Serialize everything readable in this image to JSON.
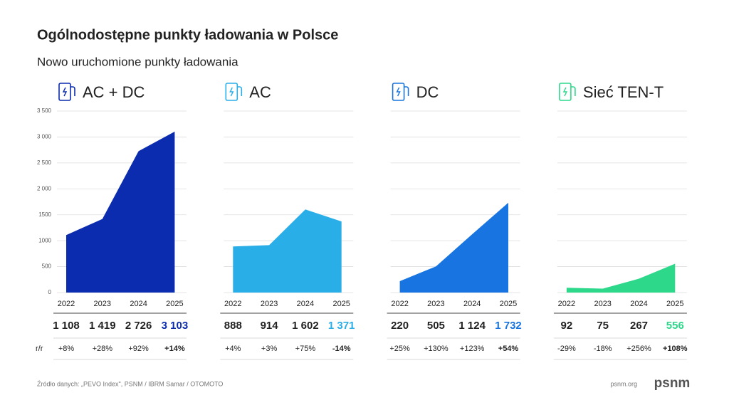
{
  "title": "Ogólnodostępne punkty ładowania w Polsce",
  "subtitle": "Nowo uruchomione punkty ładowania",
  "yoy_label": "r/r",
  "source": "Źródło danych: „PEVO Index\", PSNM / IBRM Samar / OTOMOTO",
  "website": "psnm.org",
  "logo": "psnm",
  "chart_data": [
    {
      "type": "area",
      "title": "AC + DC",
      "color": "#0b2cae",
      "categories": [
        "2022",
        "2023",
        "2024",
        "2025"
      ],
      "values": [
        1108,
        1419,
        2726,
        3103
      ],
      "value_labels": [
        "1 108",
        "1 419",
        "2 726",
        "3 103"
      ],
      "changes": [
        "+8%",
        "+28%",
        "+92%",
        "+14%"
      ],
      "ylim": [
        0,
        3500
      ],
      "yticks": [
        0,
        500,
        1000,
        {
          "value": 1500,
          "label": "1500"
        },
        {
          "value": 2000,
          "label": "2 000"
        },
        {
          "value": 2500,
          "label": "2 500"
        },
        {
          "value": 3000,
          "label": "3 000"
        },
        {
          "value": 3500,
          "label": "3 500"
        }
      ],
      "grid": true
    },
    {
      "type": "area",
      "title": "AC",
      "color": "#2aaee8",
      "categories": [
        "2022",
        "2023",
        "2024",
        "2025"
      ],
      "values": [
        888,
        914,
        1602,
        1371
      ],
      "value_labels": [
        "888",
        "914",
        "1 602",
        "1 371"
      ],
      "changes": [
        "+4%",
        "+3%",
        "+75%",
        "-14%"
      ],
      "ylim": [
        0,
        3500
      ],
      "yticks": [
        0,
        500,
        1000,
        1500,
        2000,
        2500,
        3000,
        3500
      ],
      "grid": true
    },
    {
      "type": "area",
      "title": "DC",
      "color": "#1874e0",
      "categories": [
        "2022",
        "2023",
        "2024",
        "2025"
      ],
      "values": [
        220,
        505,
        1124,
        1732
      ],
      "value_labels": [
        "220",
        "505",
        "1 124",
        "1 732"
      ],
      "changes": [
        "+25%",
        "+130%",
        "+123%",
        "+54%"
      ],
      "ylim": [
        0,
        3500
      ],
      "yticks": [
        0,
        500,
        1000,
        1500,
        2000,
        2500,
        3000,
        3500
      ],
      "grid": true
    },
    {
      "type": "area",
      "title": "Sieć TEN-T",
      "color": "#2dd88b",
      "categories": [
        "2022",
        "2023",
        "2024",
        "2025"
      ],
      "values": [
        92,
        75,
        267,
        556
      ],
      "value_labels": [
        "92",
        "75",
        "267",
        "556"
      ],
      "changes": [
        "-29%",
        "-18%",
        "+256%",
        "+108%"
      ],
      "ylim": [
        0,
        3500
      ],
      "yticks": [
        0,
        500,
        1000,
        1500,
        2000,
        2500,
        3000,
        3500
      ],
      "grid": true
    }
  ]
}
